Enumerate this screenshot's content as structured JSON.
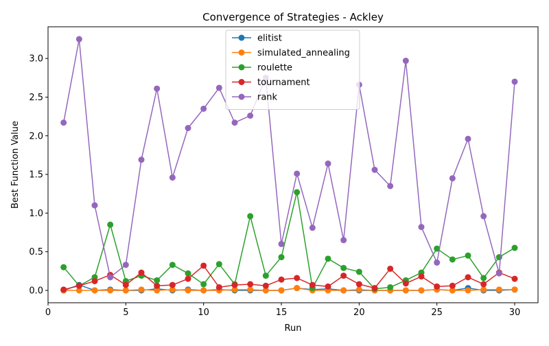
{
  "chart_data": {
    "type": "line",
    "title": "Convergence of Strategies - Ackley",
    "xlabel": "Run",
    "ylabel": "Best Function Value",
    "xlim": [
      0,
      31.5
    ],
    "ylim": [
      -0.16,
      3.41
    ],
    "x_ticks": [
      0,
      5,
      10,
      15,
      20,
      25,
      30
    ],
    "y_ticks": [
      0.0,
      0.5,
      1.0,
      1.5,
      2.0,
      2.5,
      3.0
    ],
    "x_tick_labels": [
      "0",
      "5",
      "10",
      "15",
      "20",
      "25",
      "30"
    ],
    "y_tick_labels": [
      "0.0",
      "0.5",
      "1.0",
      "1.5",
      "2.0",
      "2.5",
      "3.0"
    ],
    "grid": false,
    "legend_position": "upper center",
    "x": [
      1,
      2,
      3,
      4,
      5,
      6,
      7,
      8,
      9,
      10,
      11,
      12,
      13,
      14,
      15,
      16,
      17,
      18,
      19,
      20,
      21,
      22,
      23,
      24,
      25,
      26,
      27,
      28,
      29,
      30
    ],
    "series": [
      {
        "name": "elitist",
        "color": "#1f77b4",
        "values": [
          0.0,
          0.07,
          0.0,
          0.01,
          0.0,
          0.0,
          0.02,
          0.0,
          0.01,
          0.0,
          0.01,
          0.0,
          0.0,
          0.0,
          0.0,
          0.03,
          0.01,
          0.02,
          0.0,
          0.0,
          0.0,
          0.0,
          0.0,
          0.0,
          0.01,
          0.0,
          0.03,
          0.0,
          0.0,
          0.01
        ]
      },
      {
        "name": "simulated_annealing",
        "color": "#ff7f0e",
        "values": [
          0.0,
          0.0,
          0.0,
          0.0,
          0.0,
          0.01,
          0.0,
          0.01,
          0.0,
          0.0,
          0.0,
          0.01,
          0.01,
          0.0,
          0.0,
          0.03,
          0.0,
          0.0,
          0.0,
          0.01,
          0.0,
          0.0,
          0.0,
          0.0,
          0.01,
          0.0,
          0.0,
          0.01,
          0.01,
          0.01
        ]
      },
      {
        "name": "roulette",
        "color": "#2ca02c",
        "values": [
          0.3,
          0.06,
          0.17,
          0.85,
          0.12,
          0.19,
          0.13,
          0.33,
          0.22,
          0.08,
          0.34,
          0.08,
          0.96,
          0.19,
          0.43,
          1.27,
          0.03,
          0.41,
          0.29,
          0.24,
          0.02,
          0.04,
          0.13,
          0.23,
          0.54,
          0.4,
          0.45,
          0.16,
          0.43,
          0.55
        ]
      },
      {
        "name": "tournament",
        "color": "#d62728",
        "values": [
          0.01,
          0.06,
          0.12,
          0.2,
          0.07,
          0.23,
          0.06,
          0.07,
          0.15,
          0.32,
          0.04,
          0.07,
          0.08,
          0.06,
          0.14,
          0.16,
          0.07,
          0.05,
          0.19,
          0.08,
          0.03,
          0.28,
          0.09,
          0.18,
          0.05,
          0.06,
          0.17,
          0.08,
          0.23,
          0.15
        ]
      },
      {
        "name": "rank",
        "color": "#9467bd",
        "values": [
          2.17,
          3.25,
          1.1,
          0.17,
          0.33,
          1.69,
          2.61,
          1.46,
          2.1,
          2.35,
          2.62,
          2.17,
          2.26,
          2.75,
          0.6,
          1.51,
          0.81,
          1.64,
          0.65,
          2.66,
          1.56,
          1.35,
          2.97,
          0.82,
          0.36,
          1.45,
          1.96,
          0.96,
          0.22,
          2.7
        ]
      }
    ]
  }
}
